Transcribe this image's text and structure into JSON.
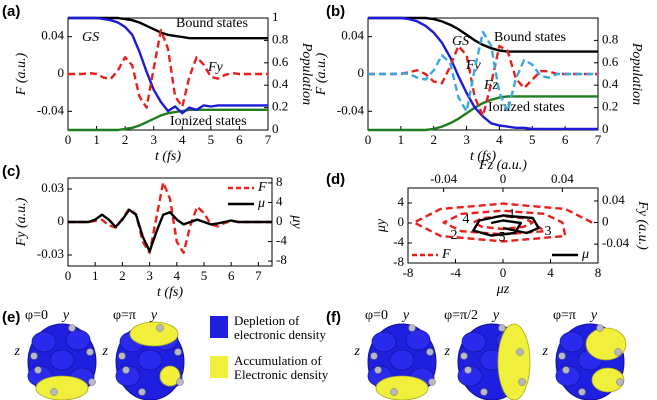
{
  "chart_data": [
    {
      "type": "line",
      "title": "(a)",
      "x_label": "t (fs)",
      "y_label": "F (a.u.)",
      "y2_label": "Population",
      "x": [
        0,
        0.25,
        0.5,
        0.75,
        1,
        1.25,
        1.5,
        1.75,
        2,
        2.25,
        2.5,
        2.75,
        3,
        3.25,
        3.5,
        3.75,
        4,
        4.25,
        4.5,
        4.75,
        5,
        5.25,
        5.5,
        5.75,
        6,
        6.25,
        6.5,
        6.75,
        7
      ],
      "xlim": [
        0,
        7
      ],
      "xticks": [
        0,
        1,
        2,
        3,
        4,
        5,
        6,
        7
      ],
      "ylim": [
        -0.06,
        0.06
      ],
      "yticks": [
        -0.04,
        0,
        0.04
      ],
      "y2lim": [
        0,
        1
      ],
      "y2ticks": [
        0,
        0.2,
        0.4,
        0.6,
        0.8,
        1
      ],
      "series": [
        {
          "name": "Bound states",
          "color": "#000000",
          "line_style": "solid",
          "axis": "y2",
          "values": [
            1,
            1,
            1,
            1,
            1,
            1,
            1,
            1,
            0.99,
            0.98,
            0.96,
            0.93,
            0.9,
            0.87,
            0.85,
            0.84,
            0.83,
            0.82,
            0.82,
            0.82,
            0.82,
            0.82,
            0.82,
            0.82,
            0.82,
            0.82,
            0.82,
            0.82,
            0.82
          ]
        },
        {
          "name": "Ionized states",
          "color": "#1e7d1e",
          "line_style": "solid",
          "axis": "y2",
          "values": [
            0,
            0,
            0,
            0,
            0,
            0,
            0,
            0,
            0.01,
            0.02,
            0.04,
            0.07,
            0.1,
            0.13,
            0.15,
            0.16,
            0.17,
            0.18,
            0.18,
            0.18,
            0.18,
            0.18,
            0.18,
            0.18,
            0.18,
            0.18,
            0.18,
            0.18,
            0.18
          ]
        },
        {
          "name": "GS",
          "color": "#1c1cd6",
          "line_style": "solid",
          "axis": "y2",
          "values": [
            1,
            1,
            1,
            1,
            1,
            0.99,
            0.98,
            0.96,
            0.92,
            0.85,
            0.7,
            0.52,
            0.36,
            0.25,
            0.17,
            0.21,
            0.15,
            0.2,
            0.18,
            0.22,
            0.21,
            0.22,
            0.22,
            0.22,
            0.22,
            0.22,
            0.22,
            0.22,
            0.22
          ]
        },
        {
          "name": "Fy",
          "color": "#e8201c",
          "line_style": "dashed",
          "axis": "y",
          "values": [
            0,
            0,
            0,
            0.001,
            0,
            -0.004,
            -0.005,
            0.004,
            0.018,
            0.009,
            -0.024,
            -0.036,
            0.006,
            0.047,
            0.027,
            -0.024,
            -0.035,
            -0.003,
            0.018,
            0.01,
            -0.003,
            -0.005,
            -0.001,
            0.001,
            0,
            0,
            0,
            0,
            0
          ]
        }
      ]
    },
    {
      "type": "line",
      "title": "(b)",
      "x_label": "t (fs)",
      "y_label": "F (a.u.)",
      "y2_label": "Population",
      "x": [
        0,
        0.25,
        0.5,
        0.75,
        1,
        1.25,
        1.5,
        1.75,
        2,
        2.25,
        2.5,
        2.75,
        3,
        3.25,
        3.5,
        3.75,
        4,
        4.25,
        4.5,
        4.75,
        5,
        5.25,
        5.5,
        5.75,
        6,
        6.25,
        6.5,
        6.75,
        7
      ],
      "xlim": [
        0,
        7
      ],
      "xticks": [
        0,
        1,
        2,
        3,
        4,
        5,
        6,
        7
      ],
      "ylim": [
        -0.06,
        0.06
      ],
      "yticks": [
        -0.04,
        0,
        0.04
      ],
      "y2lim": [
        0,
        1
      ],
      "y2ticks": [
        0,
        0.2,
        0.4,
        0.6,
        0.8
      ],
      "series": [
        {
          "name": "Bound states",
          "color": "#000000",
          "line_style": "solid",
          "axis": "y2",
          "values": [
            1,
            1,
            1,
            1,
            1,
            1,
            1,
            1,
            0.99,
            0.97,
            0.94,
            0.9,
            0.85,
            0.8,
            0.76,
            0.73,
            0.71,
            0.7,
            0.7,
            0.7,
            0.7,
            0.7,
            0.7,
            0.7,
            0.7,
            0.7,
            0.7,
            0.7,
            0.7
          ]
        },
        {
          "name": "Ionized states",
          "color": "#1e7d1e",
          "line_style": "solid",
          "axis": "y2",
          "values": [
            0,
            0,
            0,
            0,
            0,
            0,
            0,
            0,
            0.01,
            0.03,
            0.06,
            0.1,
            0.15,
            0.2,
            0.24,
            0.27,
            0.29,
            0.3,
            0.3,
            0.3,
            0.3,
            0.3,
            0.3,
            0.3,
            0.3,
            0.3,
            0.3,
            0.3,
            0.3
          ]
        },
        {
          "name": "GS",
          "color": "#1c1cd6",
          "line_style": "solid",
          "axis": "y2",
          "values": [
            1,
            1,
            1,
            1,
            1,
            0.99,
            0.97,
            0.93,
            0.87,
            0.78,
            0.65,
            0.48,
            0.33,
            0.2,
            0.12,
            0.06,
            0.04,
            0.03,
            0.02,
            0.02,
            0.01,
            0.01,
            0.01,
            0.01,
            0.01,
            0.01,
            0.01,
            0.01,
            0.01
          ]
        },
        {
          "name": "Fy",
          "color": "#e8201c",
          "line_style": "dashed",
          "axis": "y",
          "values": [
            0,
            0,
            0,
            0,
            0,
            0.002,
            0.004,
            0,
            -0.008,
            -0.01,
            0.008,
            0.03,
            0.02,
            -0.025,
            -0.045,
            -0.01,
            0.03,
            0.025,
            -0.005,
            -0.015,
            -0.006,
            0.003,
            0.003,
            0,
            0,
            0,
            0,
            0,
            0
          ]
        },
        {
          "name": "Fz",
          "color": "#3aa8e0",
          "line_style": "dashed",
          "axis": "y",
          "values": [
            0,
            0,
            0,
            0,
            0.001,
            0,
            -0.004,
            -0.006,
            0.004,
            0.02,
            0.012,
            -0.025,
            -0.04,
            0.006,
            0.045,
            0.03,
            -0.02,
            -0.04,
            -0.005,
            0.015,
            0.01,
            -0.002,
            -0.004,
            0,
            0,
            0,
            0,
            0,
            0
          ]
        }
      ]
    },
    {
      "type": "line",
      "title": "(c)",
      "x_label": "t (fs)",
      "y_label": "Fy (a.u.)",
      "y2_label": "μy",
      "legend": "upper right",
      "x": [
        0,
        0.25,
        0.5,
        0.75,
        1,
        1.25,
        1.5,
        1.75,
        2,
        2.25,
        2.5,
        2.75,
        3,
        3.25,
        3.5,
        3.75,
        4,
        4.25,
        4.5,
        4.75,
        5,
        5.25,
        5.5,
        5.75,
        6,
        6.25,
        6.5,
        6.75,
        7,
        7.25,
        7.5
      ],
      "xlim": [
        0,
        7.5
      ],
      "xticks": [
        0,
        1,
        2,
        3,
        4,
        5,
        6,
        7
      ],
      "ylim": [
        -0.04,
        0.04
      ],
      "yticks": [
        -0.03,
        0,
        0.03
      ],
      "y2lim": [
        -9,
        9
      ],
      "y2ticks": [
        -8,
        -4,
        0,
        4,
        8
      ],
      "series": [
        {
          "name": "F",
          "color": "#e8201c",
          "line_style": "dashed",
          "axis": "y",
          "values": [
            0,
            0,
            0,
            0,
            0.001,
            0.002,
            -0.003,
            -0.005,
            0.003,
            0.012,
            0.007,
            -0.018,
            -0.028,
            0.004,
            0.036,
            0.021,
            -0.018,
            -0.028,
            -0.003,
            0.014,
            0.008,
            -0.002,
            -0.004,
            -0.001,
            0.001,
            0,
            0,
            0,
            0,
            0,
            0
          ]
        },
        {
          "name": "μ",
          "color": "#000000",
          "line_style": "solid",
          "axis": "y2",
          "values": [
            0,
            0,
            0,
            0,
            0.5,
            1.5,
            0.5,
            -1,
            0.5,
            2.5,
            1.5,
            -3,
            -6,
            -2,
            1.5,
            2,
            0.5,
            -0.5,
            0,
            0.5,
            0,
            -0.5,
            -0.3,
            0,
            0.3,
            0,
            0,
            0,
            0,
            0,
            0
          ]
        }
      ]
    },
    {
      "type": "line",
      "title": "(d)",
      "x_label": "μz",
      "y_label": "μy",
      "x2_label": "Fz (a.u.)",
      "y2_label": "Fy (a.u.)",
      "legend": "lower center",
      "xlim": [
        -8,
        8
      ],
      "xticks": [
        -8,
        -4,
        0,
        4,
        8
      ],
      "ylim": [
        -8,
        7
      ],
      "yticks": [
        -8,
        -4,
        0,
        4
      ],
      "x2lim": [
        -0.064,
        0.064
      ],
      "x2ticks": [
        -0.04,
        0,
        0.04
      ],
      "y2lim": [
        -0.075,
        0.064
      ],
      "y2ticks": [
        -0.04,
        0,
        0.04
      ],
      "annotations": [
        "1",
        "2",
        "3",
        "4",
        "5"
      ],
      "series": [
        {
          "name": "F",
          "color": "#e8201c",
          "line_style": "dashed",
          "axis": "y2",
          "xaxis": "x2",
          "x": [
            0.06,
            0.042,
            0,
            -0.042,
            -0.06,
            -0.042,
            0,
            0.042,
            0.04,
            0.028,
            0,
            -0.028,
            -0.04,
            -0.028,
            0,
            0.028,
            0.02,
            0.014,
            0,
            -0.014,
            -0.02,
            -0.014,
            0,
            0.014,
            0.02
          ],
          "values": [
            0,
            0.025,
            0.035,
            0.025,
            0,
            -0.025,
            -0.035,
            -0.025,
            0,
            0.016,
            0.022,
            0.016,
            0,
            -0.016,
            -0.022,
            -0.016,
            0,
            0.008,
            0.012,
            0.008,
            0,
            -0.008,
            -0.012,
            -0.008,
            0
          ]
        },
        {
          "name": "μ",
          "color": "#000000",
          "line_style": "solid",
          "axis": "y",
          "x": [
            0,
            2,
            3,
            2.5,
            0,
            -2,
            -2.5,
            -1,
            1,
            1.5,
            0,
            -1
          ],
          "values": [
            -1,
            -2,
            -1,
            1,
            1.5,
            0.5,
            -1.5,
            -2.5,
            -2,
            0,
            0.5,
            0
          ]
        }
      ]
    }
  ],
  "molecule_panels": [
    {
      "label": "(e)",
      "images": [
        {
          "phase": "φ=0",
          "y_axis": "y",
          "z_axis": "z"
        },
        {
          "phase": "φ=π",
          "y_axis": "y",
          "z_axis": "z"
        }
      ],
      "legend": [
        {
          "lines": [
            "Depletion of",
            "electronic density"
          ],
          "color": "#1f1fe0"
        },
        {
          "lines": [
            "Accumulation of",
            "Electronic density"
          ],
          "color": "#f0f03c"
        }
      ]
    },
    {
      "label": "(f)",
      "images": [
        {
          "phase": "φ=0",
          "y_axis": "y",
          "z_axis": "z"
        },
        {
          "phase": "φ=π/2",
          "y_axis": "y",
          "z_axis": "z"
        },
        {
          "phase": "φ=π",
          "y_axis": "y",
          "z_axis": "z"
        }
      ]
    }
  ]
}
